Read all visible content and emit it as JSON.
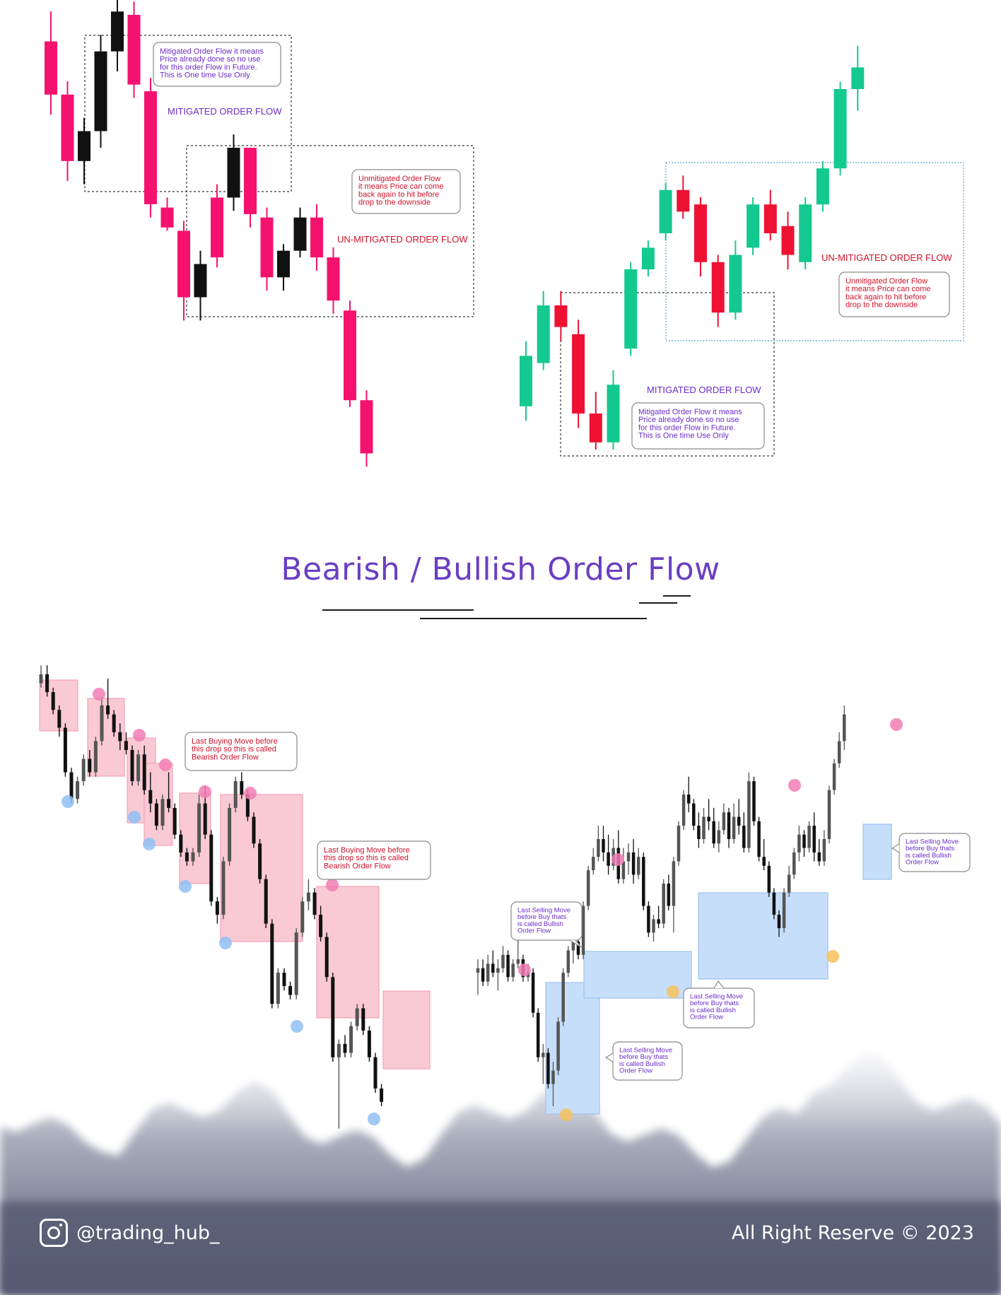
{
  "page": {
    "title": "Bearish / Bullish Order Flow",
    "handle": "@trading_hub_",
    "copyright": "All Right Reserve © 2023",
    "colors": {
      "title": "#6a3fc2",
      "bear_pink": "#f5126e",
      "bull_green": "#14c98f",
      "bear_red": "#ee1133",
      "purple_text": "#6a2cc9",
      "red_text": "#d0122b",
      "zone_pink": "#f9c9d4",
      "zone_blue": "#c7defa",
      "dot_pink": "#f27db4",
      "dot_blue": "#8fc0f5",
      "dot_orange": "#f6c25a"
    },
    "icons": {
      "instagram": "instagram-icon"
    }
  },
  "chart_data": [
    {
      "type": "candlestick",
      "id": "top-left",
      "annotations": {
        "mitigated_note": "Mitigated Order Flow it means\nPrice already done so no use\nfor this order Flow in Future.\nThis is One time Use Only",
        "mitigated_label": "MITIGATED ORDER FLOW",
        "unmitigated_note": "Unmitigated Order Flow\nit means Price can come\nback again to hit before\ndrop to the downside",
        "unmitigated_label": "UN-MITIGATED ORDER FLOW"
      },
      "candles": [
        {
          "o": 82,
          "h": 91,
          "l": 60,
          "c": 66
        },
        {
          "o": 66,
          "h": 70,
          "l": 40,
          "c": 46
        },
        {
          "o": 46,
          "h": 59,
          "l": 39,
          "c": 55
        },
        {
          "o": 55,
          "h": 84,
          "l": 50,
          "c": 79
        },
        {
          "o": 79,
          "h": 98,
          "l": 73,
          "c": 91
        },
        {
          "o": 90,
          "h": 94,
          "l": 65,
          "c": 69
        },
        {
          "o": 67,
          "h": 71,
          "l": 29,
          "c": 33
        },
        {
          "o": 32,
          "h": 35,
          "l": 25,
          "c": 26
        },
        {
          "o": 25,
          "h": 28,
          "l": -2,
          "c": 5
        },
        {
          "o": 5,
          "h": 19,
          "l": -2,
          "c": 15
        },
        {
          "o": 17,
          "h": 39,
          "l": 14,
          "c": 35
        },
        {
          "o": 35,
          "h": 54,
          "l": 31,
          "c": 50
        },
        {
          "o": 50,
          "h": 49,
          "l": 26,
          "c": 30
        },
        {
          "o": 29,
          "h": 32,
          "l": 7,
          "c": 11
        },
        {
          "o": 11,
          "h": 21,
          "l": 7,
          "c": 19
        },
        {
          "o": 19,
          "h": 32,
          "l": 17,
          "c": 29
        },
        {
          "o": 29,
          "h": 33,
          "l": 13,
          "c": 17
        },
        {
          "o": 17,
          "h": 20,
          "l": 0,
          "c": 4
        },
        {
          "o": 1,
          "h": 4,
          "l": -28,
          "c": -26
        },
        {
          "o": -26,
          "h": -23,
          "l": -46,
          "c": -42
        }
      ]
    },
    {
      "type": "candlestick",
      "id": "top-right",
      "annotations": {
        "unmitigated_label": "UN-MITIGATED ORDER FLOW",
        "unmitigated_note": "Unmitigated Order Flow\nit means Price can come\nback again to hit before\ndrop to the downside",
        "mitigated_label": "MITIGATED ORDER FLOW",
        "mitigated_note": "Mitigated Order Flow it means\nPrice already done so no use\nfor this order Flow in Future.\nThis is One time Use Only"
      },
      "candles": [
        {
          "o": 6,
          "h": 15,
          "l": 4,
          "c": 13
        },
        {
          "o": 12,
          "h": 22,
          "l": 11,
          "c": 20
        },
        {
          "o": 20,
          "h": 22,
          "l": 15,
          "c": 17
        },
        {
          "o": 16,
          "h": 18,
          "l": 3,
          "c": 5
        },
        {
          "o": 5,
          "h": 8,
          "l": 0,
          "c": 1
        },
        {
          "o": 1,
          "h": 11,
          "l": 0,
          "c": 9
        },
        {
          "o": 14,
          "h": 26,
          "l": 13,
          "c": 25
        },
        {
          "o": 25,
          "h": 29,
          "l": 24,
          "c": 28
        },
        {
          "o": 30,
          "h": 37,
          "l": 29,
          "c": 36
        },
        {
          "o": 36,
          "h": 38,
          "l": 32,
          "c": 33
        },
        {
          "o": 34,
          "h": 35,
          "l": 24,
          "c": 26
        },
        {
          "o": 26,
          "h": 27,
          "l": 17,
          "c": 19
        },
        {
          "o": 19,
          "h": 29,
          "l": 18,
          "c": 27
        },
        {
          "o": 28,
          "h": 35,
          "l": 27,
          "c": 34
        },
        {
          "o": 34,
          "h": 36,
          "l": 29,
          "c": 30
        },
        {
          "o": 31,
          "h": 33,
          "l": 25,
          "c": 27
        },
        {
          "o": 26,
          "h": 35,
          "l": 25,
          "c": 34
        },
        {
          "o": 34,
          "h": 40,
          "l": 33,
          "c": 39
        },
        {
          "o": 39,
          "h": 51,
          "l": 38,
          "c": 50
        },
        {
          "o": 50,
          "h": 56,
          "l": 47,
          "c": 53
        }
      ]
    },
    {
      "type": "candlestick",
      "id": "bottom-left",
      "annotations": {
        "note_1": "Last Buying Move before\nthis drop so this is called\nBearish Order Flow",
        "note_2": "Last Buying Move before\nthis drop so this is called\nBearish Order Flow"
      },
      "candles": [
        {
          "o": 95,
          "h": 99,
          "l": 94,
          "c": 97
        },
        {
          "o": 97,
          "h": 99,
          "l": 92,
          "c": 93
        },
        {
          "o": 93,
          "h": 94,
          "l": 88,
          "c": 89
        },
        {
          "o": 89,
          "h": 90,
          "l": 83,
          "c": 85
        },
        {
          "o": 85,
          "h": 86,
          "l": 74,
          "c": 75
        },
        {
          "o": 75,
          "h": 76,
          "l": 68,
          "c": 69
        },
        {
          "o": 69,
          "h": 74,
          "l": 68,
          "c": 73
        },
        {
          "o": 73,
          "h": 79,
          "l": 72,
          "c": 78
        },
        {
          "o": 78,
          "h": 80,
          "l": 74,
          "c": 75
        },
        {
          "o": 75,
          "h": 83,
          "l": 74,
          "c": 82
        },
        {
          "o": 82,
          "h": 92,
          "l": 81,
          "c": 90
        },
        {
          "o": 90,
          "h": 96,
          "l": 87,
          "c": 88
        },
        {
          "o": 88,
          "h": 89,
          "l": 83,
          "c": 84
        },
        {
          "o": 84,
          "h": 86,
          "l": 80,
          "c": 82
        },
        {
          "o": 82,
          "h": 84,
          "l": 79,
          "c": 80
        },
        {
          "o": 80,
          "h": 81,
          "l": 72,
          "c": 73
        },
        {
          "o": 73,
          "h": 80,
          "l": 72,
          "c": 79
        },
        {
          "o": 79,
          "h": 81,
          "l": 70,
          "c": 71
        },
        {
          "o": 71,
          "h": 75,
          "l": 66,
          "c": 68
        },
        {
          "o": 68,
          "h": 69,
          "l": 62,
          "c": 63
        },
        {
          "o": 63,
          "h": 70,
          "l": 62,
          "c": 69
        },
        {
          "o": 69,
          "h": 75,
          "l": 66,
          "c": 67
        },
        {
          "o": 67,
          "h": 68,
          "l": 60,
          "c": 61
        },
        {
          "o": 61,
          "h": 62,
          "l": 56,
          "c": 57
        },
        {
          "o": 57,
          "h": 58,
          "l": 54,
          "c": 55
        },
        {
          "o": 55,
          "h": 58,
          "l": 54,
          "c": 57
        },
        {
          "o": 57,
          "h": 70,
          "l": 56,
          "c": 68
        },
        {
          "o": 68,
          "h": 72,
          "l": 60,
          "c": 61
        },
        {
          "o": 61,
          "h": 62,
          "l": 45,
          "c": 46
        },
        {
          "o": 46,
          "h": 47,
          "l": 41,
          "c": 43
        },
        {
          "o": 43,
          "h": 56,
          "l": 42,
          "c": 55
        },
        {
          "o": 55,
          "h": 68,
          "l": 54,
          "c": 67
        },
        {
          "o": 67,
          "h": 74,
          "l": 66,
          "c": 73
        },
        {
          "o": 73,
          "h": 75,
          "l": 69,
          "c": 70
        },
        {
          "o": 70,
          "h": 71,
          "l": 64,
          "c": 65
        },
        {
          "o": 65,
          "h": 66,
          "l": 58,
          "c": 59
        },
        {
          "o": 59,
          "h": 60,
          "l": 50,
          "c": 51
        },
        {
          "o": 51,
          "h": 52,
          "l": 40,
          "c": 41
        },
        {
          "o": 41,
          "h": 42,
          "l": 22,
          "c": 23
        },
        {
          "o": 23,
          "h": 31,
          "l": 22,
          "c": 30
        },
        {
          "o": 30,
          "h": 31,
          "l": 26,
          "c": 27
        },
        {
          "o": 27,
          "h": 28,
          "l": 24,
          "c": 25
        },
        {
          "o": 25,
          "h": 40,
          "l": 24,
          "c": 39
        },
        {
          "o": 39,
          "h": 47,
          "l": 38,
          "c": 46
        },
        {
          "o": 46,
          "h": 51,
          "l": 44,
          "c": 48
        },
        {
          "o": 48,
          "h": 49,
          "l": 42,
          "c": 43
        },
        {
          "o": 43,
          "h": 45,
          "l": 37,
          "c": 38
        },
        {
          "o": 38,
          "h": 39,
          "l": 28,
          "c": 29
        },
        {
          "o": 29,
          "h": 30,
          "l": 10,
          "c": 11
        },
        {
          "o": 11,
          "h": 15,
          "l": -5,
          "c": 14
        },
        {
          "o": 14,
          "h": 16,
          "l": 11,
          "c": 12
        },
        {
          "o": 12,
          "h": 19,
          "l": 11,
          "c": 18
        },
        {
          "o": 18,
          "h": 23,
          "l": 17,
          "c": 22
        },
        {
          "o": 22,
          "h": 23,
          "l": 16,
          "c": 17
        },
        {
          "o": 17,
          "h": 18,
          "l": 10,
          "c": 11
        },
        {
          "o": 11,
          "h": 12,
          "l": 3,
          "c": 4
        },
        {
          "o": 4,
          "h": 5,
          "l": 0,
          "c": 1
        }
      ]
    },
    {
      "type": "candlestick",
      "id": "bottom-right",
      "annotations": {
        "note_1": "Last Selling Move\nbefore Buy thats\nis called Bullish\nOrder Flow",
        "note_2": "Last Selling Move\nbefore Buy thats\nis called Bullish\nOrder Flow",
        "note_3": "Last Selling Move\nbefore Buy thats\nis called Bullish\nOrder Flow",
        "note_4": "Last Selling Move\nbefore Buy thats\nis called Bullish\nOrder Flow"
      },
      "candles": [
        {
          "o": 30,
          "h": 33,
          "l": 25,
          "c": 31
        },
        {
          "o": 31,
          "h": 33,
          "l": 27,
          "c": 28
        },
        {
          "o": 28,
          "h": 34,
          "l": 27,
          "c": 32
        },
        {
          "o": 32,
          "h": 35,
          "l": 29,
          "c": 30
        },
        {
          "o": 30,
          "h": 33,
          "l": 26,
          "c": 31
        },
        {
          "o": 31,
          "h": 36,
          "l": 30,
          "c": 34
        },
        {
          "o": 34,
          "h": 35,
          "l": 28,
          "c": 29
        },
        {
          "o": 29,
          "h": 33,
          "l": 28,
          "c": 32
        },
        {
          "o": 32,
          "h": 38,
          "l": 31,
          "c": 33
        },
        {
          "o": 33,
          "h": 34,
          "l": 28,
          "c": 29
        },
        {
          "o": 29,
          "h": 32,
          "l": 28,
          "c": 30
        },
        {
          "o": 30,
          "h": 31,
          "l": 20,
          "c": 21
        },
        {
          "o": 21,
          "h": 22,
          "l": 10,
          "c": 11
        },
        {
          "o": 11,
          "h": 14,
          "l": 5,
          "c": 12
        },
        {
          "o": 12,
          "h": 13,
          "l": 4,
          "c": 5
        },
        {
          "o": 5,
          "h": 10,
          "l": 0,
          "c": 8
        },
        {
          "o": 8,
          "h": 20,
          "l": 7,
          "c": 19
        },
        {
          "o": 19,
          "h": 31,
          "l": 18,
          "c": 30
        },
        {
          "o": 30,
          "h": 36,
          "l": 29,
          "c": 35
        },
        {
          "o": 35,
          "h": 40,
          "l": 32,
          "c": 37
        },
        {
          "o": 37,
          "h": 38,
          "l": 33,
          "c": 34
        },
        {
          "o": 34,
          "h": 46,
          "l": 33,
          "c": 45
        },
        {
          "o": 45,
          "h": 54,
          "l": 44,
          "c": 53
        },
        {
          "o": 53,
          "h": 58,
          "l": 52,
          "c": 56
        },
        {
          "o": 56,
          "h": 63,
          "l": 55,
          "c": 60
        },
        {
          "o": 60,
          "h": 63,
          "l": 55,
          "c": 57
        },
        {
          "o": 57,
          "h": 61,
          "l": 52,
          "c": 54
        },
        {
          "o": 54,
          "h": 60,
          "l": 53,
          "c": 58
        },
        {
          "o": 58,
          "h": 62,
          "l": 50,
          "c": 51
        },
        {
          "o": 51,
          "h": 58,
          "l": 50,
          "c": 55
        },
        {
          "o": 55,
          "h": 59,
          "l": 52,
          "c": 57
        },
        {
          "o": 57,
          "h": 60,
          "l": 50,
          "c": 52
        },
        {
          "o": 52,
          "h": 58,
          "l": 51,
          "c": 56
        },
        {
          "o": 56,
          "h": 57,
          "l": 44,
          "c": 45
        },
        {
          "o": 45,
          "h": 46,
          "l": 38,
          "c": 39
        },
        {
          "o": 39,
          "h": 43,
          "l": 37,
          "c": 42
        },
        {
          "o": 42,
          "h": 45,
          "l": 40,
          "c": 41
        },
        {
          "o": 41,
          "h": 51,
          "l": 40,
          "c": 50
        },
        {
          "o": 50,
          "h": 52,
          "l": 44,
          "c": 45
        },
        {
          "o": 45,
          "h": 56,
          "l": 39,
          "c": 55
        },
        {
          "o": 55,
          "h": 64,
          "l": 54,
          "c": 63
        },
        {
          "o": 63,
          "h": 71,
          "l": 62,
          "c": 70
        },
        {
          "o": 70,
          "h": 74,
          "l": 66,
          "c": 68
        },
        {
          "o": 68,
          "h": 69,
          "l": 62,
          "c": 63
        },
        {
          "o": 63,
          "h": 66,
          "l": 58,
          "c": 60
        },
        {
          "o": 60,
          "h": 67,
          "l": 59,
          "c": 65
        },
        {
          "o": 65,
          "h": 69,
          "l": 62,
          "c": 64
        },
        {
          "o": 64,
          "h": 67,
          "l": 58,
          "c": 59
        },
        {
          "o": 59,
          "h": 64,
          "l": 57,
          "c": 62
        },
        {
          "o": 62,
          "h": 68,
          "l": 61,
          "c": 66
        },
        {
          "o": 66,
          "h": 67,
          "l": 58,
          "c": 60
        },
        {
          "o": 60,
          "h": 68,
          "l": 59,
          "c": 65
        },
        {
          "o": 65,
          "h": 69,
          "l": 61,
          "c": 63
        },
        {
          "o": 63,
          "h": 66,
          "l": 57,
          "c": 58
        },
        {
          "o": 58,
          "h": 75,
          "l": 57,
          "c": 73
        },
        {
          "o": 73,
          "h": 74,
          "l": 63,
          "c": 64
        },
        {
          "o": 64,
          "h": 65,
          "l": 55,
          "c": 56
        },
        {
          "o": 56,
          "h": 60,
          "l": 53,
          "c": 54
        },
        {
          "o": 54,
          "h": 55,
          "l": 47,
          "c": 48
        },
        {
          "o": 48,
          "h": 49,
          "l": 42,
          "c": 43
        },
        {
          "o": 43,
          "h": 44,
          "l": 38,
          "c": 40
        },
        {
          "o": 40,
          "h": 49,
          "l": 39,
          "c": 48
        },
        {
          "o": 48,
          "h": 54,
          "l": 47,
          "c": 52
        },
        {
          "o": 52,
          "h": 58,
          "l": 51,
          "c": 57
        },
        {
          "o": 57,
          "h": 63,
          "l": 55,
          "c": 61
        },
        {
          "o": 61,
          "h": 62,
          "l": 56,
          "c": 58
        },
        {
          "o": 58,
          "h": 64,
          "l": 57,
          "c": 63
        },
        {
          "o": 63,
          "h": 66,
          "l": 55,
          "c": 57
        },
        {
          "o": 57,
          "h": 60,
          "l": 54,
          "c": 55
        },
        {
          "o": 55,
          "h": 62,
          "l": 54,
          "c": 60
        },
        {
          "o": 60,
          "h": 72,
          "l": 59,
          "c": 71
        },
        {
          "o": 71,
          "h": 78,
          "l": 70,
          "c": 77
        },
        {
          "o": 77,
          "h": 84,
          "l": 76,
          "c": 82
        },
        {
          "o": 82,
          "h": 90,
          "l": 80,
          "c": 88
        }
      ]
    }
  ]
}
